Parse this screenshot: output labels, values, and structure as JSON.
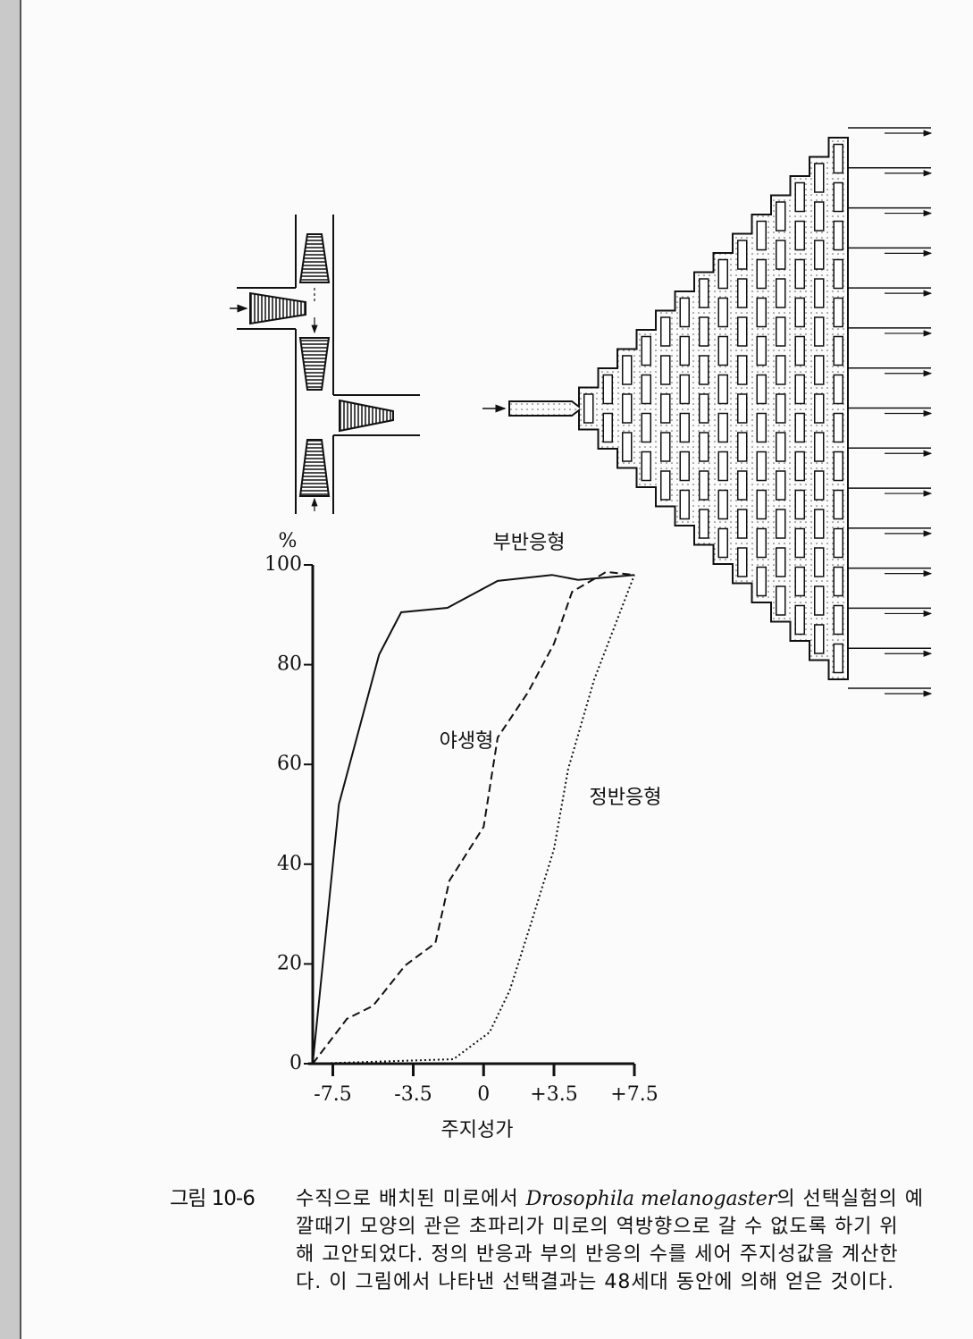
{
  "chart_data": {
    "type": "line",
    "xlabel": "주지성가",
    "ylabel": "%",
    "xlim": [
      -8.5,
      7.5
    ],
    "ylim": [
      0,
      100
    ],
    "xticks": [
      -7.5,
      -3.5,
      0,
      {
        "value": 3.5,
        "label": "+3.5"
      },
      {
        "value": 7.5,
        "label": "+7.5"
      }
    ],
    "yticks": [
      0,
      20,
      40,
      60,
      80,
      100
    ],
    "series": [
      {
        "name": "부반응형",
        "color": "#111111",
        "dash": "solid",
        "x": [
          -8.5,
          -7.2,
          -5.2,
          -4.1,
          -1.8,
          0.7,
          3.4,
          4.7,
          7.5
        ],
        "values": [
          0,
          52,
          82,
          90.5,
          91.4,
          96.8,
          98,
          97,
          98
        ]
      },
      {
        "name": "야생형",
        "color": "#111111",
        "dash": "dashed",
        "x": [
          -8.5,
          -6.8,
          -5.5,
          -3.9,
          -2.4,
          -1.7,
          0,
          0.7,
          2.2,
          3.5,
          4.4,
          6.1,
          7.5
        ],
        "values": [
          0,
          9,
          11.6,
          19.7,
          24.2,
          36.7,
          47.5,
          65.4,
          74.4,
          84.2,
          94.6,
          98.6,
          98
        ]
      },
      {
        "name": "정반응형",
        "color": "#111111",
        "dash": "dotted",
        "x": [
          -8.5,
          -1.5,
          0.3,
          1.3,
          2.4,
          3.5,
          4.2,
          5.5,
          7.5
        ],
        "values": [
          0,
          0.9,
          6.3,
          14.7,
          28.7,
          43,
          59,
          77,
          98
        ]
      }
    ]
  },
  "caption": {
    "number": "그림 10-6",
    "lines": [
      [
        "수직으로 배치된 미로에서 ",
        "Drosophila melanogaster",
        "의 선택실험의 예"
      ],
      [
        "깔때기 모양의 관은 초파리가 미로의 역방향으로 갈 수 없도록 하기 위"
      ],
      [
        "해 고안되었다. 정의 반응과 부의 반응의 수를 세어 주지성값을 계산한"
      ],
      [
        "다. 이 그림에서 나타낸 선택결과는 48세대 동안에 의해 얻은 것이다."
      ]
    ]
  }
}
